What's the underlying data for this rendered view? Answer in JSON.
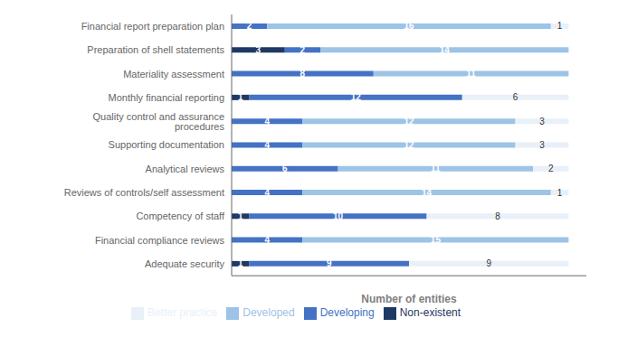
{
  "chart_data": {
    "type": "bar",
    "orientation": "horizontal",
    "stacked": true,
    "categories": [
      "Financial report preparation plan",
      "Preparation of shell statements",
      "Materiality assessment",
      "Monthly financial reporting",
      "Quality control and assurance procedures",
      "Supporting documentation",
      "Analytical reviews",
      "Reviews of controls/self assessment",
      "Competency of staff",
      "Financial compliance reviews",
      "Adequate security"
    ],
    "series": [
      {
        "name": "Non-existent",
        "color": "#1F3864",
        "values": [
          0,
          3,
          0,
          1,
          0,
          0,
          0,
          0,
          1,
          0,
          1
        ]
      },
      {
        "name": "Developing",
        "color": "#4472C4",
        "values": [
          2,
          2,
          8,
          12,
          4,
          4,
          6,
          4,
          10,
          4,
          9
        ]
      },
      {
        "name": "Developed",
        "color": "#9DC3E6",
        "values": [
          16,
          14,
          11,
          0,
          12,
          12,
          11,
          14,
          0,
          15,
          0
        ]
      },
      {
        "name": "Better practice",
        "color": "#E9F0F8",
        "values": [
          1,
          0,
          0,
          6,
          3,
          3,
          2,
          1,
          8,
          0,
          9
        ]
      }
    ],
    "xlabel": "Number of entities",
    "xlim": [
      0,
      20
    ],
    "tick_labels": "y",
    "data_labels": true,
    "grid": false,
    "legend": "bottom"
  }
}
